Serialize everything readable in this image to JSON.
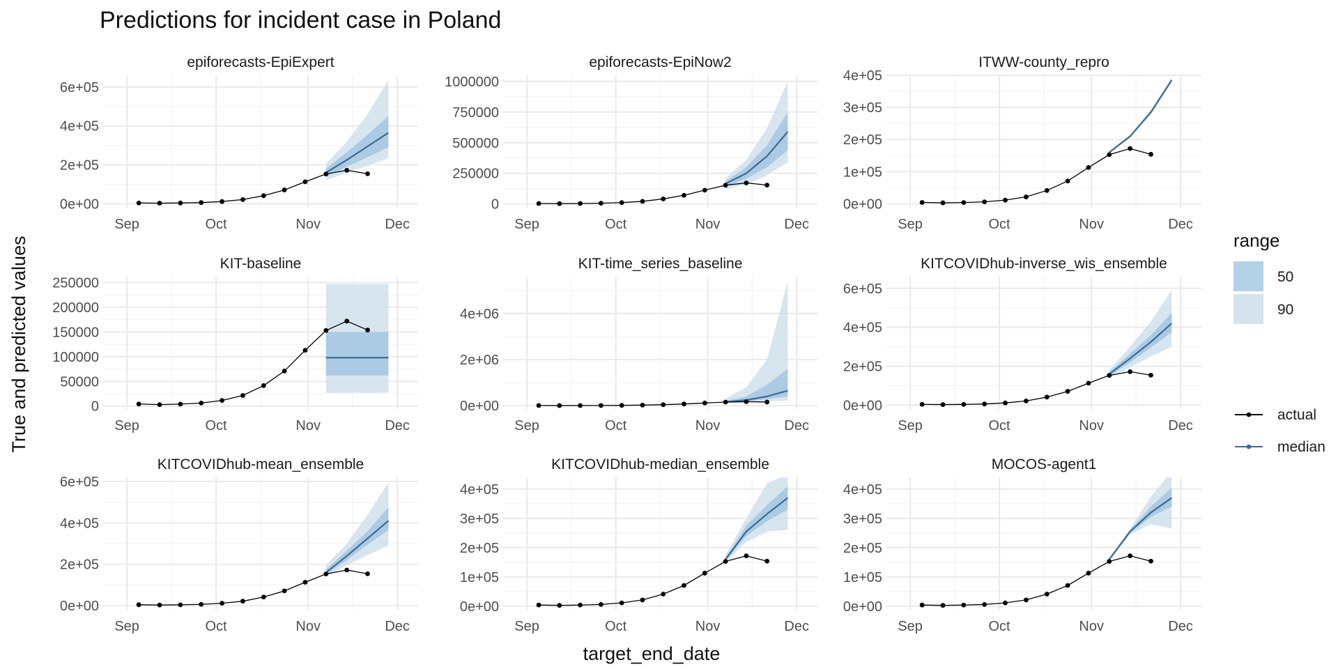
{
  "chart_data": {
    "type": "line",
    "title": "Predictions for incident case in Poland",
    "xlabel": "target_end_date",
    "ylabel": "True and predicted values",
    "x_ticks": [
      "Sep",
      "Oct",
      "Nov",
      "Dec"
    ],
    "actual": {
      "dates": [
        "2020-09-05",
        "2020-09-12",
        "2020-09-19",
        "2020-09-26",
        "2020-10-03",
        "2020-10-10",
        "2020-10-17",
        "2020-10-24",
        "2020-10-31",
        "2020-11-07",
        "2020-11-14",
        "2020-11-21"
      ],
      "values": [
        4200,
        3000,
        4000,
        6200,
        11500,
        21500,
        41500,
        71000,
        113000,
        153000,
        172000,
        154000
      ]
    },
    "legend": {
      "range_title": "range",
      "range_items": [
        {
          "label": "50",
          "color": "#b3d1e7"
        },
        {
          "label": "90",
          "color": "#d4e3ec"
        }
      ],
      "line_items": [
        {
          "label": "actual",
          "color": "#000000"
        },
        {
          "label": "median",
          "color": "#3a6b94"
        }
      ]
    },
    "colors": {
      "band50": "#a3c6e0",
      "band90": "#d0e1ec",
      "median": "#3a6b94",
      "actual": "#000000"
    },
    "forecast_dates": [
      "2020-11-07",
      "2020-11-14",
      "2020-11-21",
      "2020-11-28"
    ],
    "panels": [
      {
        "name": "epiforecasts-EpiExpert",
        "ylim": [
          -20000,
          660000
        ],
        "y_ticks": [
          0,
          200000,
          400000,
          600000
        ],
        "y_tick_labels": [
          "0e+00",
          "2e+05",
          "4e+05",
          "6e+05"
        ],
        "median": [
          160000,
          225000,
          295000,
          365000
        ],
        "q25": [
          140000,
          190000,
          240000,
          290000
        ],
        "q75": [
          180000,
          265000,
          355000,
          450000
        ],
        "q05": [
          120000,
          160000,
          195000,
          235000
        ],
        "q95": [
          205000,
          320000,
          460000,
          635000
        ]
      },
      {
        "name": "epiforecasts-EpiNow2",
        "ylim": [
          -30000,
          1050000
        ],
        "y_ticks": [
          0,
          250000,
          500000,
          750000,
          1000000
        ],
        "y_tick_labels": [
          "0",
          "250000",
          "500000",
          "750000",
          "1000000"
        ],
        "median": [
          165000,
          250000,
          390000,
          590000
        ],
        "q25": [
          145000,
          205000,
          300000,
          440000
        ],
        "q75": [
          185000,
          300000,
          480000,
          750000
        ],
        "q05": [
          120000,
          160000,
          235000,
          340000
        ],
        "q95": [
          210000,
          360000,
          620000,
          1000000
        ]
      },
      {
        "name": "ITWW-county_repro",
        "ylim": [
          -12000,
          400000
        ],
        "y_ticks": [
          0,
          100000,
          200000,
          300000,
          400000
        ],
        "y_tick_labels": [
          "0e+00",
          "1e+05",
          "2e+05",
          "3e+05",
          "4e+05"
        ],
        "median": [
          160000,
          210000,
          285000,
          385000
        ],
        "q25": [
          158000,
          207000,
          281000,
          381000
        ],
        "q75": [
          162000,
          213000,
          289000,
          389000
        ],
        "q05": [
          156000,
          205000,
          278000,
          378000
        ],
        "q95": [
          164000,
          215000,
          292000,
          392000
        ]
      },
      {
        "name": "KIT-baseline",
        "ylim": [
          -6000,
          262000
        ],
        "y_ticks": [
          0,
          50000,
          100000,
          150000,
          200000,
          250000
        ],
        "y_tick_labels": [
          "0",
          "50000",
          "100000",
          "150000",
          "200000",
          "250000"
        ],
        "median": [
          98000,
          98000,
          98000,
          98000
        ],
        "q25": [
          62000,
          62000,
          62000,
          62000
        ],
        "q75": [
          150000,
          150000,
          150000,
          150000
        ],
        "q05": [
          27000,
          27000,
          27000,
          27000
        ],
        "q95": [
          247000,
          247000,
          247000,
          247000
        ]
      },
      {
        "name": "KIT-time_series_baseline",
        "ylim": [
          -150000,
          5600000
        ],
        "y_ticks": [
          0,
          2000000,
          4000000
        ],
        "y_tick_labels": [
          "0e+00",
          "2e+06",
          "4e+06"
        ],
        "median": [
          160000,
          240000,
          400000,
          650000
        ],
        "q25": [
          130000,
          180000,
          280000,
          400000
        ],
        "q75": [
          200000,
          400000,
          900000,
          1600000
        ],
        "q05": [
          100000,
          130000,
          180000,
          230000
        ],
        "q95": [
          300000,
          800000,
          2000000,
          5400000
        ]
      },
      {
        "name": "KITCOVIDhub-inverse_wis_ensemble",
        "ylim": [
          -20000,
          660000
        ],
        "y_ticks": [
          0,
          200000,
          400000,
          600000
        ],
        "y_tick_labels": [
          "0e+00",
          "2e+05",
          "4e+05",
          "6e+05"
        ],
        "median": [
          160000,
          240000,
          325000,
          420000
        ],
        "q25": [
          150000,
          220000,
          295000,
          375000
        ],
        "q75": [
          170000,
          265000,
          360000,
          475000
        ],
        "q05": [
          140000,
          195000,
          250000,
          300000
        ],
        "q95": [
          180000,
          300000,
          430000,
          590000
        ]
      },
      {
        "name": "KITCOVIDhub-mean_ensemble",
        "ylim": [
          -20000,
          620000
        ],
        "y_ticks": [
          0,
          200000,
          400000,
          600000
        ],
        "y_tick_labels": [
          "0e+00",
          "2e+05",
          "4e+05",
          "6e+05"
        ],
        "median": [
          160000,
          240000,
          325000,
          410000
        ],
        "q25": [
          150000,
          220000,
          295000,
          365000
        ],
        "q75": [
          175000,
          265000,
          360000,
          475000
        ],
        "q05": [
          140000,
          195000,
          245000,
          290000
        ],
        "q95": [
          195000,
          300000,
          440000,
          595000
        ]
      },
      {
        "name": "KITCOVIDhub-median_ensemble",
        "ylim": [
          -12000,
          440000
        ],
        "y_ticks": [
          0,
          100000,
          200000,
          300000,
          400000
        ],
        "y_tick_labels": [
          "0e+00",
          "1e+05",
          "2e+05",
          "3e+05",
          "4e+05"
        ],
        "median": [
          160000,
          255000,
          315000,
          370000
        ],
        "q25": [
          155000,
          240000,
          290000,
          330000
        ],
        "q75": [
          165000,
          275000,
          345000,
          410000
        ],
        "q05": [
          150000,
          220000,
          255000,
          260000
        ],
        "q95": [
          175000,
          300000,
          420000,
          450000
        ]
      },
      {
        "name": "MOCOS-agent1",
        "ylim": [
          -12000,
          440000
        ],
        "y_ticks": [
          0,
          100000,
          200000,
          300000,
          400000
        ],
        "y_tick_labels": [
          "0e+00",
          "1e+05",
          "2e+05",
          "3e+05",
          "4e+05"
        ],
        "median": [
          160000,
          255000,
          320000,
          370000
        ],
        "q25": [
          158000,
          250000,
          305000,
          340000
        ],
        "q75": [
          162000,
          260000,
          340000,
          405000
        ],
        "q05": [
          155000,
          245000,
          280000,
          265000
        ],
        "q95": [
          165000,
          265000,
          375000,
          460000
        ]
      }
    ]
  }
}
